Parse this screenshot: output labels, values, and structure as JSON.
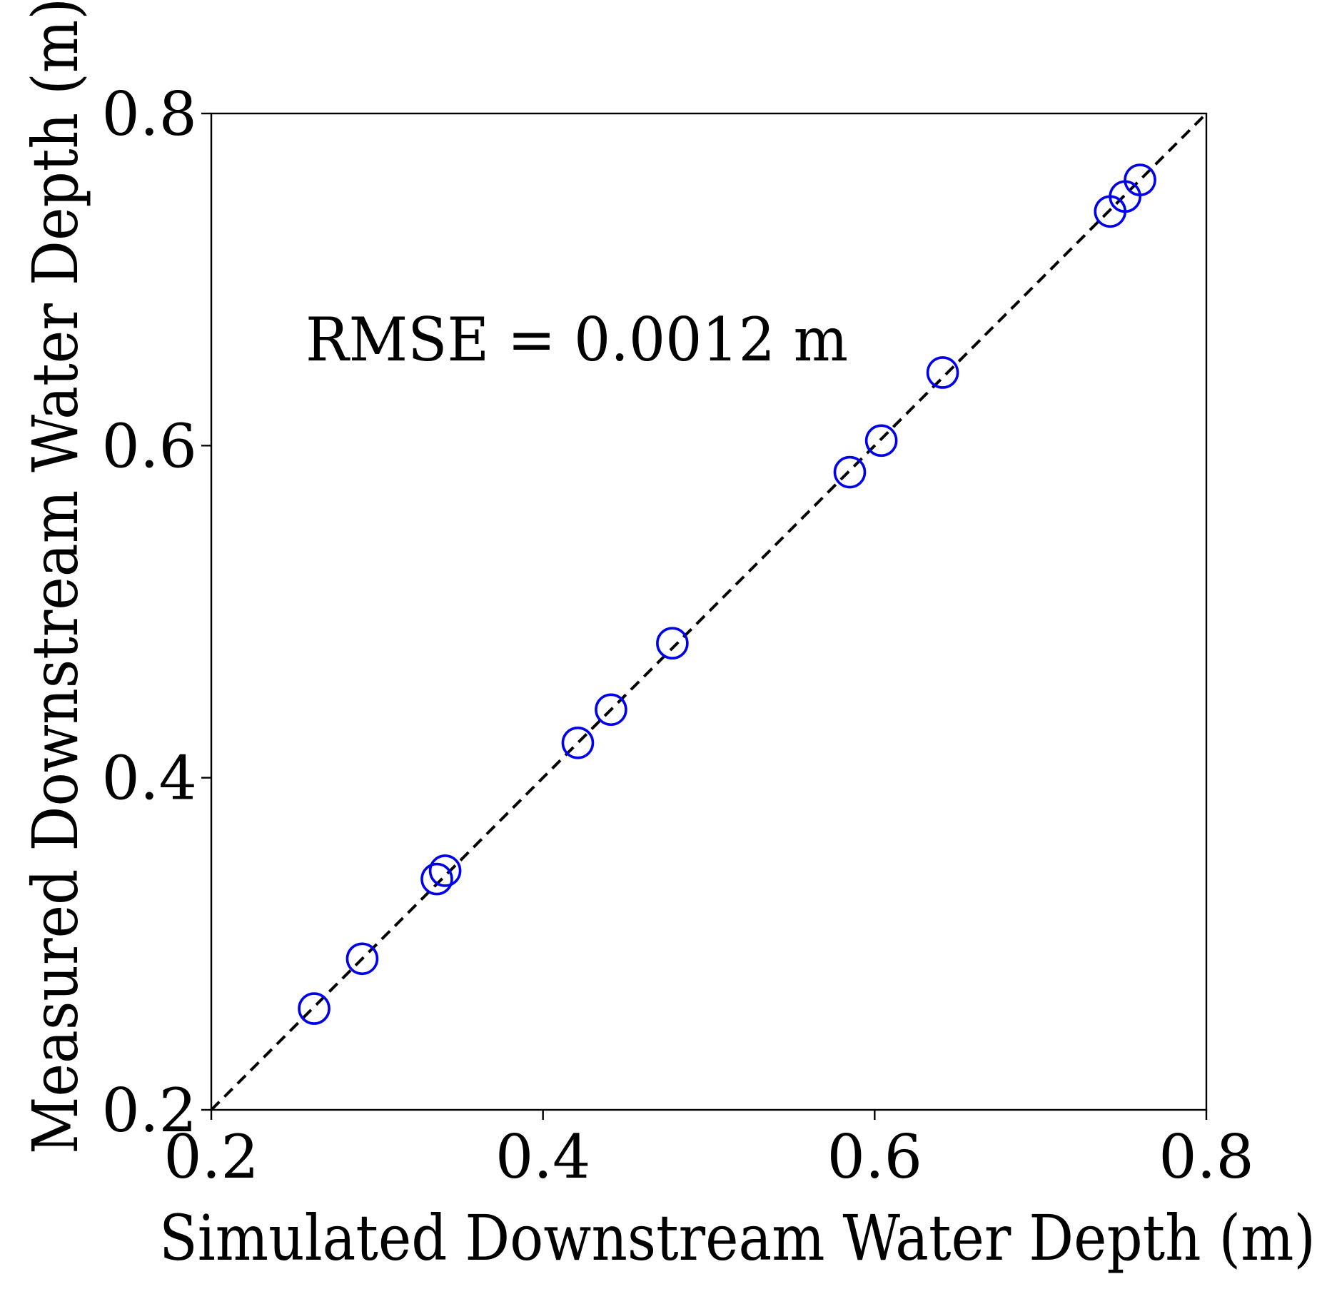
{
  "chart_data": {
    "type": "scatter",
    "title": "",
    "xlabel": "Simulated Downstream Water Depth (m)",
    "ylabel": "Measured Downstream Water Depth (m)",
    "xlim": [
      0.2,
      0.8
    ],
    "ylim": [
      0.2,
      0.8
    ],
    "xticks": [
      0.2,
      0.4,
      0.6,
      0.8
    ],
    "yticks": [
      0.2,
      0.4,
      0.6,
      0.8
    ],
    "xtick_labels": [
      "0.2",
      "0.4",
      "0.6",
      "0.8"
    ],
    "ytick_labels": [
      "0.2",
      "0.4",
      "0.6",
      "0.8"
    ],
    "grid": false,
    "annotation": "RMSE = 0.0012 m",
    "reference_line": {
      "x": [
        0.2,
        0.8
      ],
      "y": [
        0.2,
        0.8
      ],
      "style": "dashed",
      "color": "#000000"
    },
    "marker_color": "#0000ee",
    "marker_style": "open-circle",
    "series": [
      {
        "name": "",
        "x": [
          0.262,
          0.291,
          0.336,
          0.341,
          0.421,
          0.441,
          0.478,
          0.585,
          0.604,
          0.641,
          0.742,
          0.751,
          0.76
        ],
        "y": [
          0.261,
          0.291,
          0.339,
          0.344,
          0.421,
          0.441,
          0.481,
          0.584,
          0.603,
          0.644,
          0.741,
          0.75,
          0.76
        ]
      }
    ]
  }
}
